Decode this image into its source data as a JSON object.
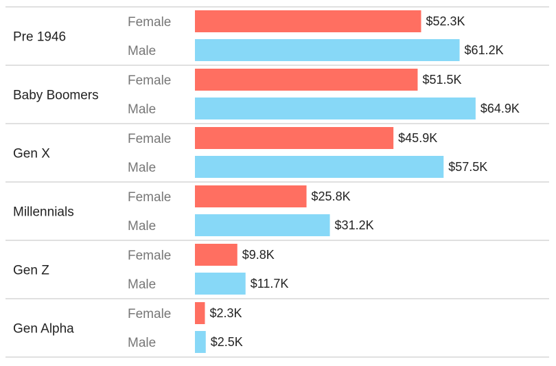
{
  "chart_data": {
    "type": "bar",
    "orientation": "horizontal",
    "value_prefix": "$",
    "value_suffix": "K",
    "subcategories": [
      "Female",
      "Male"
    ],
    "colors": {
      "Female": "#ff6f61",
      "Male": "#87d8f7"
    },
    "categories": [
      "Pre 1946",
      "Baby Boomers",
      "Gen X",
      "Millennials",
      "Gen Z",
      "Gen Alpha"
    ],
    "series": [
      {
        "name": "Female",
        "values": [
          52.3,
          51.5,
          45.9,
          25.8,
          9.8,
          2.3
        ],
        "labels": [
          "$52.3K",
          "$51.5K",
          "$45.9K",
          "$25.8K",
          "$9.8K",
          "$2.3K"
        ]
      },
      {
        "name": "Male",
        "values": [
          61.2,
          64.9,
          57.5,
          31.2,
          11.7,
          2.5
        ],
        "labels": [
          "$61.2K",
          "$64.9K",
          "$57.5K",
          "$31.2K",
          "$11.7K",
          "$2.5K"
        ]
      }
    ],
    "xlim": [
      0,
      65
    ],
    "grid": false,
    "legend": "none"
  }
}
